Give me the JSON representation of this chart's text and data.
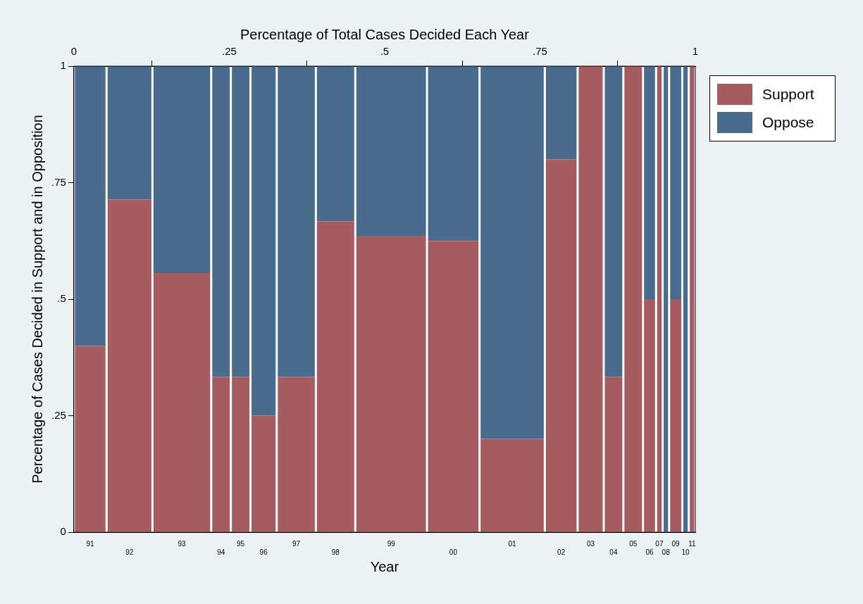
{
  "chart_data": {
    "type": "bar",
    "stacked": true,
    "xlabel": "Year",
    "x2label": "Percentage of Total Cases Decided Each Year",
    "ylabel": "Percentage of Cases Decided in Support and in Opposition",
    "categories": [
      "91",
      "92",
      "93",
      "94",
      "95",
      "96",
      "97",
      "98",
      "99",
      "00",
      "01",
      "02",
      "03",
      "04",
      "05",
      "06",
      "07",
      "08",
      "09",
      "10",
      "11"
    ],
    "x2lim": [
      0,
      1
    ],
    "x2ticks": [
      0,
      {
        "value": 0.25,
        "label": ".25"
      },
      {
        "value": 0.5,
        "label": ".5"
      },
      {
        "value": 0.75,
        "label": ".75"
      },
      1
    ],
    "ylim": [
      0,
      1
    ],
    "yticks": [
      0,
      {
        "value": 0.25,
        "label": ".25"
      },
      {
        "value": 0.5,
        "label": ".5"
      },
      {
        "value": 0.75,
        "label": ".75"
      },
      1
    ],
    "grid": false,
    "legend": "right",
    "series": [
      {
        "name": "Support",
        "color": "#a65c5f",
        "axis": "x2",
        "x": [
          0.0263,
          0.0895,
          0.1737,
          0.2368,
          0.2684,
          0.3053,
          0.3579,
          0.4211,
          0.5105,
          0.6105,
          0.7053,
          0.7842,
          0.8316,
          0.8684,
          0.9,
          0.9263,
          0.9421,
          0.9526,
          0.9684,
          0.9842,
          0.9947
        ],
        "values": [
          0.4,
          0.714,
          0.556,
          0.333,
          0.333,
          0.25,
          0.333,
          0.667,
          0.636,
          0.625,
          0.2,
          0.8,
          1,
          0.333,
          1,
          0.5,
          1,
          0,
          0.5,
          0,
          1
        ]
      },
      {
        "name": "Oppose",
        "color": "#486b8e",
        "axis": "x2",
        "x": [
          0.0263,
          0.0895,
          0.1737,
          0.2368,
          0.2684,
          0.3053,
          0.3579,
          0.4211,
          0.5105,
          0.6105,
          0.7053,
          0.7842,
          0.8316,
          0.8684,
          0.9,
          0.9263,
          0.9421,
          0.9526,
          0.9684,
          0.9842,
          0.9947
        ],
        "values": [
          0.6,
          0.286,
          0.444,
          0.667,
          0.667,
          0.75,
          0.667,
          0.333,
          0.364,
          0.375,
          0.8,
          0.2,
          0,
          0.667,
          0,
          0.5,
          0,
          1,
          0.5,
          1,
          0
        ]
      }
    ]
  }
}
